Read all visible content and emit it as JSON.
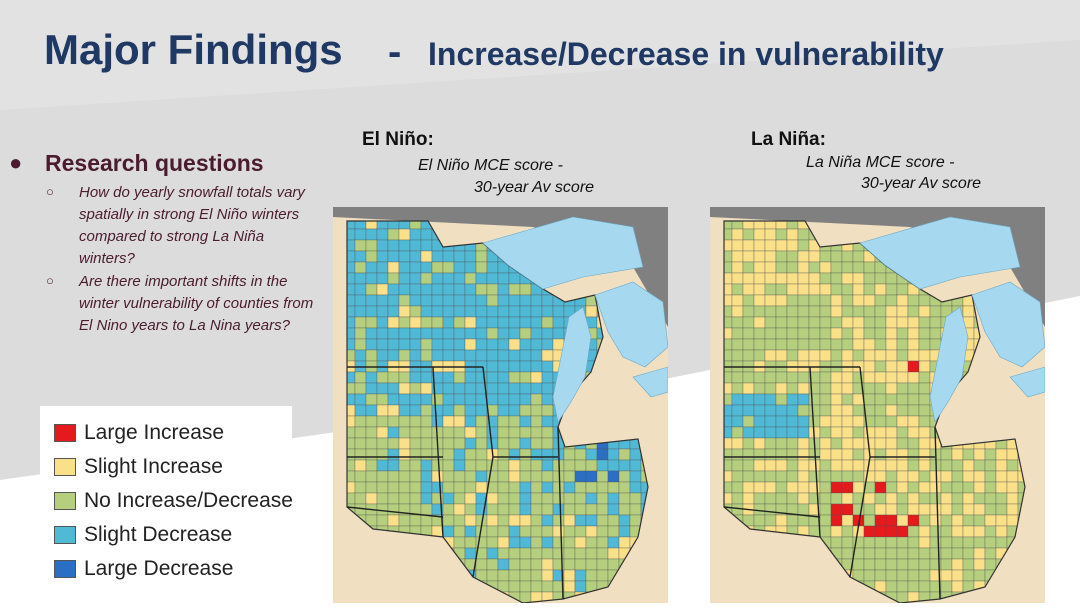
{
  "title": {
    "main": "Major Findings",
    "separator": "-",
    "sub": "Increase/Decrease in vulnerability"
  },
  "research": {
    "bullet": "●",
    "heading": "Research questions",
    "items": [
      {
        "marker": "○",
        "text": "How do yearly snowfall totals vary spatially in strong El Niño winters compared to strong La Niña winters?"
      },
      {
        "marker": "○",
        "text": "Are there important shifts in the winter vulnerability of counties from El Nino years to La Nina years?"
      }
    ]
  },
  "legend": {
    "items": [
      {
        "label": "Large Increase",
        "color": "#e41a1c"
      },
      {
        "label": "Slight Increase",
        "color": "#fbe08a"
      },
      {
        "label": "No Increase/Decrease",
        "color": "#b5cf7e"
      },
      {
        "label": "Slight Decrease",
        "color": "#4fb9d6"
      },
      {
        "label": "Large Decrease",
        "color": "#2b6fc4"
      }
    ]
  },
  "maps": {
    "elnino": {
      "title": "El Niño:",
      "subtitle_line1": "El Niño MCE score -",
      "subtitle_line2": "30-year Av score"
    },
    "lanina": {
      "title": "La Niña:",
      "subtitle_line1": "La Niña MCE score -",
      "subtitle_line2": "30-year Av score"
    }
  },
  "colors": {
    "title": "#1f3864",
    "text": "#4a1c2e",
    "lake": "#a6d8f0",
    "land_outside": "#f0dfc0",
    "canada": "#808080"
  }
}
